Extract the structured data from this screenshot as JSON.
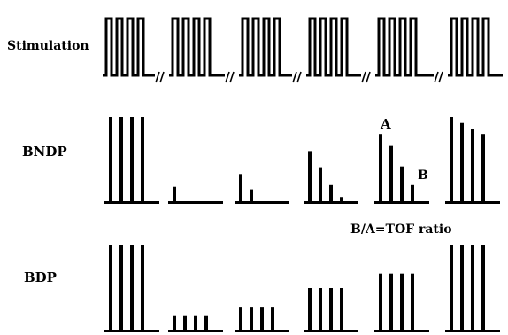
{
  "labels": {
    "stimulation": "Stimulation",
    "bndp": "BNDP",
    "bdp": "BDP",
    "marker_a": "A",
    "marker_b": "B",
    "ratio_note": "B/A=TOF ratio"
  },
  "diagram": {
    "pulses_per_train": 4,
    "train_count": 6,
    "bndp_relative_heights": [
      [
        1,
        1,
        1,
        1
      ],
      [
        0.18,
        0,
        0,
        0
      ],
      [
        0.33,
        0.15,
        0,
        0
      ],
      [
        0.6,
        0.4,
        0.2,
        0.06
      ],
      [
        0.8,
        0.66,
        0.42,
        0.2
      ],
      [
        1,
        0.93,
        0.86,
        0.8
      ]
    ],
    "bdp_relative_heights": [
      [
        1,
        1,
        1,
        1
      ],
      [
        0.18,
        0.18,
        0.18,
        0.18
      ],
      [
        0.28,
        0.28,
        0.28,
        0.28
      ],
      [
        0.5,
        0.5,
        0.5,
        0.5
      ],
      [
        0.67,
        0.67,
        0.67,
        0.67
      ],
      [
        1,
        1,
        1,
        1
      ]
    ]
  }
}
